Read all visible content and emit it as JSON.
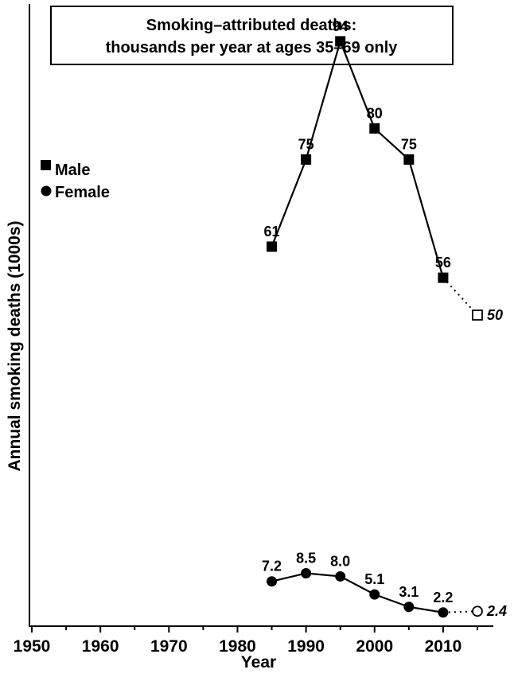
{
  "chart_data": {
    "type": "line",
    "title": [
      "Smoking–attributed deaths:",
      "thousands per year at ages 35–69 only"
    ],
    "xlabel": "Year",
    "ylabel": "Annual smoking deaths (1000s)",
    "xlim": [
      1950,
      2015
    ],
    "ylim": [
      0,
      100
    ],
    "x_ticks": [
      1950,
      1955,
      1960,
      1965,
      1970,
      1975,
      1980,
      1985,
      1990,
      1995,
      2000,
      2005,
      2010,
      2015
    ],
    "x_tick_labels": [
      "1950",
      "1960",
      "1970",
      "1980",
      "1990",
      "2000",
      "2010"
    ],
    "legend_position": "top-left",
    "series": [
      {
        "name": "Male",
        "marker": "square",
        "x": [
          1985,
          1990,
          1995,
          2000,
          2005,
          2010
        ],
        "values": [
          61,
          75,
          94,
          80,
          75,
          56
        ],
        "labels": [
          "61",
          "75",
          "94",
          "80",
          "75",
          "56"
        ],
        "projection": {
          "x": 2015,
          "value": 50,
          "label": "50"
        }
      },
      {
        "name": "Female",
        "marker": "circle",
        "x": [
          1985,
          1990,
          1995,
          2000,
          2005,
          2010
        ],
        "values": [
          7.2,
          8.5,
          8.0,
          5.1,
          3.1,
          2.2
        ],
        "labels": [
          "7.2",
          "8.5",
          "8.0",
          "5.1",
          "3.1",
          "2.2"
        ],
        "projection": {
          "x": 2015,
          "value": 2.4,
          "label": "2.4"
        }
      }
    ]
  }
}
